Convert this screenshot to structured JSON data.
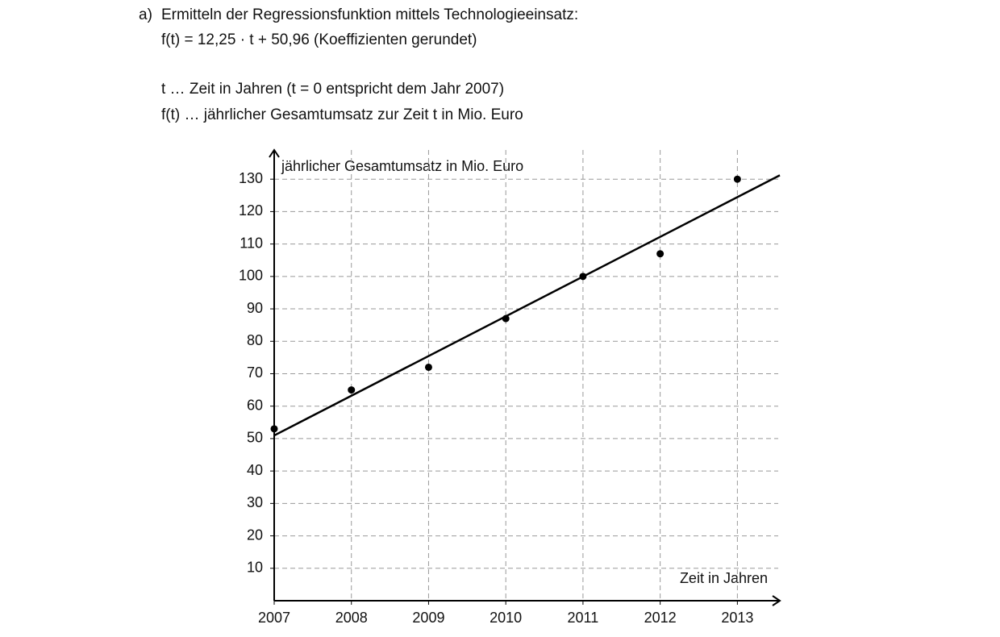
{
  "item_label": "a)",
  "lines": [
    "Ermitteln der Regressionsfunktion mittels Technologieeinsatz:",
    "f(t) = 12,25 · t + 50,96   (Koeffizienten gerundet)",
    "t … Zeit in Jahren (t = 0 entspricht dem Jahr 2007)",
    "f(t) … jährlicher Gesamtumsatz zur Zeit t in Mio. Euro"
  ],
  "chart_data": {
    "type": "scatter",
    "y_label": "jährlicher Gesamtumsatz in Mio. Euro",
    "x_label": "Zeit in Jahren",
    "series": [
      {
        "mode": "points",
        "color": "#000000",
        "x": [
          2007,
          2008,
          2009,
          2010,
          2011,
          2012,
          2013
        ],
        "values": [
          53,
          65,
          72,
          87,
          100,
          107,
          130
        ]
      },
      {
        "mode": "line",
        "color": "#000000",
        "x": [
          2007,
          2013.55
        ],
        "values": [
          50.96,
          131.2
        ]
      }
    ],
    "xlim": [
      2007,
      2013.55
    ],
    "ylim": [
      0,
      139
    ],
    "xticks": [
      2007,
      2008,
      2009,
      2010,
      2011,
      2012,
      2013
    ],
    "yticks": [
      10,
      20,
      30,
      40,
      50,
      60,
      70,
      80,
      90,
      100,
      110,
      120,
      130
    ],
    "grid": true
  }
}
